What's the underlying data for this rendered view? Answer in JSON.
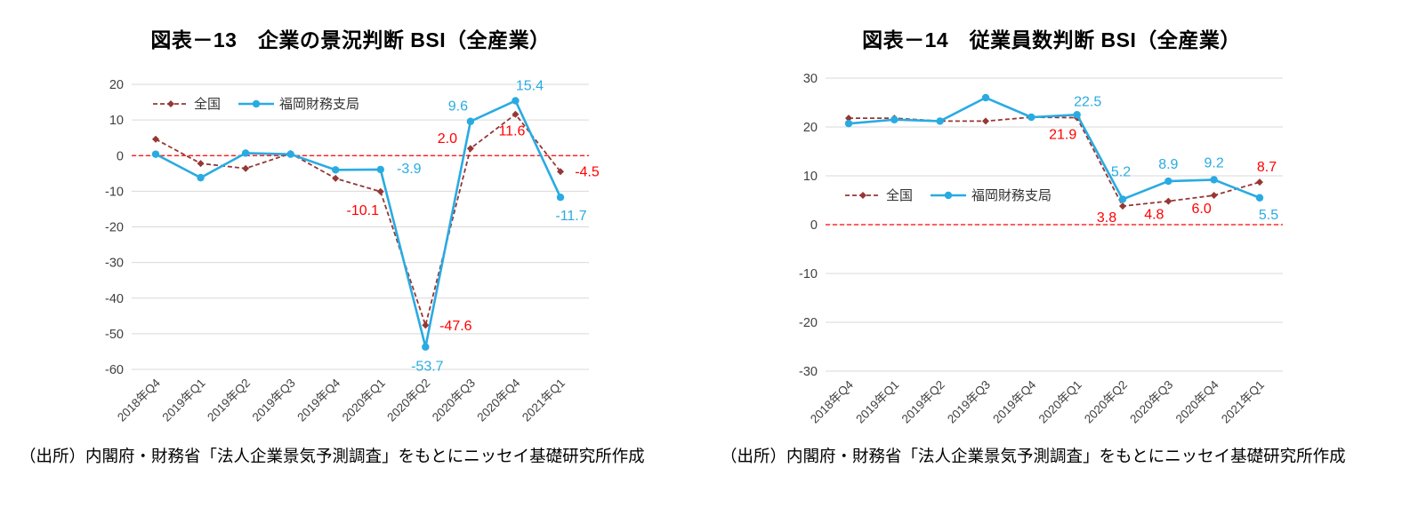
{
  "charts": [
    {
      "source": "（出所）内閣府・財務省「法人企業景気予測調査」をもとにニッセイ基礎研究所作成",
      "chart_data": {
        "type": "line",
        "title": "図表－13　企業の景況判断 BSI（全産業）",
        "categories": [
          "2018年Q4",
          "2019年Q1",
          "2019年Q2",
          "2019年Q3",
          "2019年Q4",
          "2020年Q1",
          "2020年Q2",
          "2020年Q3",
          "2020年Q4",
          "2021年Q1"
        ],
        "ylim": [
          -60,
          20
        ],
        "ytick_step": 10,
        "grid": true,
        "zero_line_color": "#ff0000",
        "grid_color": "#d9d9d9",
        "legend_position": "inside-top-left",
        "series": [
          {
            "name": "全国",
            "color": "#953735",
            "line_style": "dashed",
            "marker": "diamond",
            "label_color": "#ff0000",
            "values": [
              4.6,
              -2.2,
              -3.6,
              0.6,
              -6.4,
              -10.1,
              -47.6,
              2.0,
              11.6,
              -4.5
            ],
            "data_labels": [
              {
                "index": 5,
                "text": "-10.1",
                "dx": -20,
                "dy": 26
              },
              {
                "index": 6,
                "text": "-47.6",
                "dx": 34,
                "dy": 6
              },
              {
                "index": 7,
                "text": "2.0",
                "dx": -26,
                "dy": -6
              },
              {
                "index": 8,
                "text": "11.6",
                "dx": -4,
                "dy": 24
              },
              {
                "index": 9,
                "text": "-4.5",
                "dx": 30,
                "dy": 5
              }
            ]
          },
          {
            "name": "福岡財務支局",
            "color": "#29abe2",
            "line_style": "solid",
            "marker": "circle",
            "label_color": "#29abe2",
            "values": [
              0.4,
              -6.2,
              0.7,
              0.4,
              -4.0,
              -3.9,
              -53.7,
              9.6,
              15.4,
              -11.7
            ],
            "data_labels": [
              {
                "index": 5,
                "text": "-3.9",
                "dx": 32,
                "dy": 4
              },
              {
                "index": 6,
                "text": "-53.7",
                "dx": 2,
                "dy": 27
              },
              {
                "index": 7,
                "text": "9.6",
                "dx": -14,
                "dy": -12
              },
              {
                "index": 8,
                "text": "15.4",
                "dx": 16,
                "dy": -12
              },
              {
                "index": 9,
                "text": "-11.7",
                "dx": 12,
                "dy": 26
              }
            ]
          }
        ]
      }
    },
    {
      "source": "（出所）内閣府・財務省「法人企業景気予測調査」をもとにニッセイ基礎研究所作成",
      "chart_data": {
        "type": "line",
        "title": "図表－14　従業員数判断 BSI（全産業）",
        "categories": [
          "2018年Q4",
          "2019年Q1",
          "2019年Q2",
          "2019年Q3",
          "2019年Q4",
          "2020年Q1",
          "2020年Q2",
          "2020年Q3",
          "2020年Q4",
          "2021年Q1"
        ],
        "ylim": [
          -30,
          30
        ],
        "ytick_step": 10,
        "grid": true,
        "zero_line_color": "#ff0000",
        "grid_color": "#d9d9d9",
        "legend_position": "inside-middle-left",
        "series": [
          {
            "name": "全国",
            "color": "#953735",
            "line_style": "dashed",
            "marker": "diamond",
            "label_color": "#ff0000",
            "values": [
              21.8,
              21.8,
              21.2,
              21.2,
              22.0,
              21.9,
              3.8,
              4.8,
              6.0,
              8.7
            ],
            "data_labels": [
              {
                "index": 5,
                "text": "21.9",
                "dx": -16,
                "dy": 24
              },
              {
                "index": 6,
                "text": "3.8",
                "dx": -18,
                "dy": 18
              },
              {
                "index": 7,
                "text": "4.8",
                "dx": -16,
                "dy": 20
              },
              {
                "index": 8,
                "text": "6.0",
                "dx": -14,
                "dy": 20
              },
              {
                "index": 9,
                "text": "8.7",
                "dx": 8,
                "dy": -12
              }
            ]
          },
          {
            "name": "福岡財務支局",
            "color": "#29abe2",
            "line_style": "solid",
            "marker": "circle",
            "label_color": "#29abe2",
            "values": [
              20.7,
              21.5,
              21.2,
              26.0,
              22.0,
              22.5,
              5.2,
              8.9,
              9.2,
              5.5
            ],
            "data_labels": [
              {
                "index": 5,
                "text": "22.5",
                "dx": 12,
                "dy": -10
              },
              {
                "index": 6,
                "text": "5.2",
                "dx": -2,
                "dy": -26
              },
              {
                "index": 7,
                "text": "8.9",
                "dx": 0,
                "dy": -14
              },
              {
                "index": 8,
                "text": "9.2",
                "dx": 0,
                "dy": -14
              },
              {
                "index": 9,
                "text": "5.5",
                "dx": 10,
                "dy": 24
              }
            ]
          }
        ]
      }
    }
  ]
}
